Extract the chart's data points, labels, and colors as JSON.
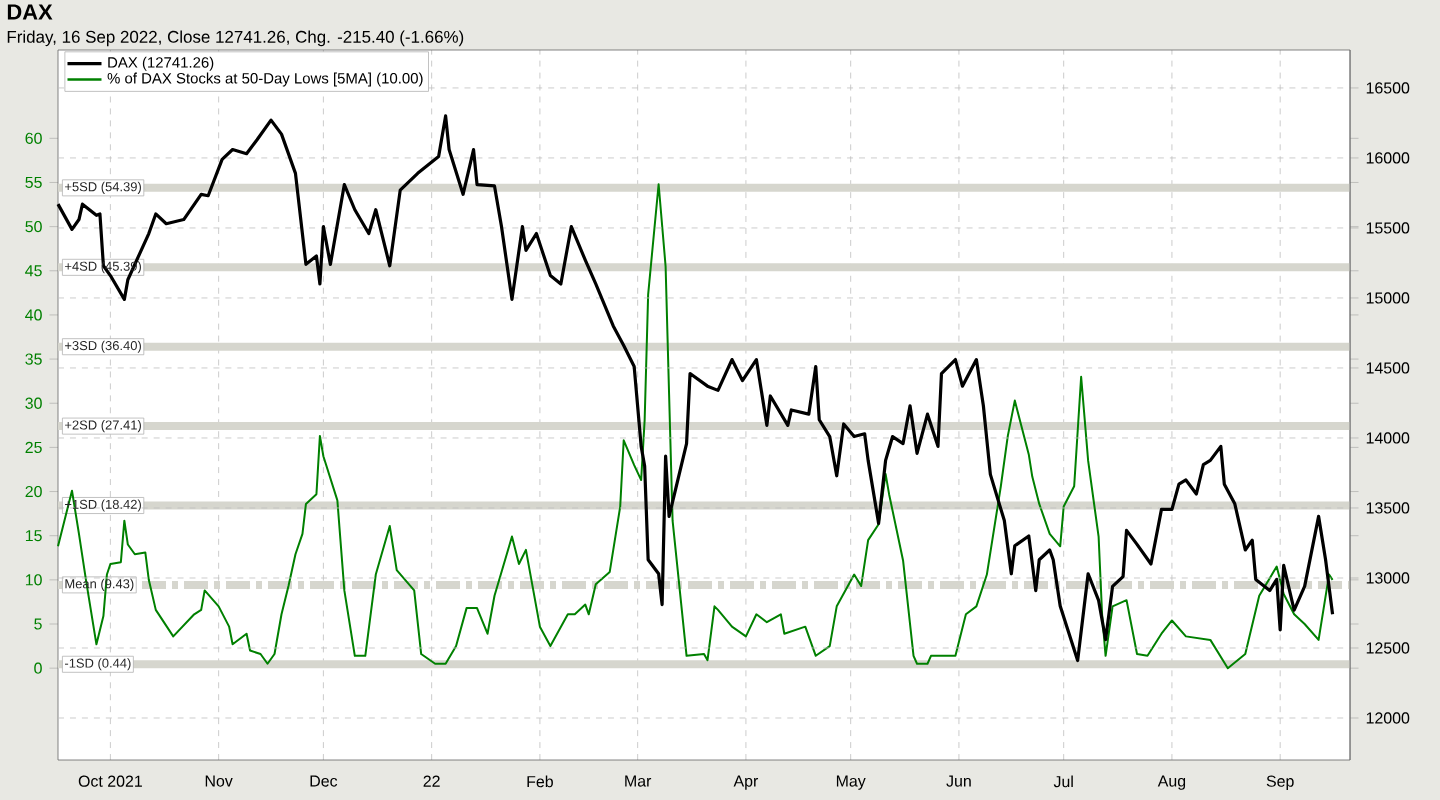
{
  "chart_data": {
    "type": "line",
    "title": "DAX",
    "subtitle": "Friday, 16 Sep 2022, Close 12741.26, Chg. -215.40 (-1.66%)",
    "xlim": [
      "2021-09-16",
      "2022-09-21"
    ],
    "xticks": [
      {
        "value": "2021-10-01",
        "label": "Oct 2021"
      },
      {
        "value": "2021-11-01",
        "label": "Nov"
      },
      {
        "value": "2021-12-01",
        "label": "Dec"
      },
      {
        "value": "2022-01-01",
        "label": "22"
      },
      {
        "value": "2022-02-01",
        "label": "Feb"
      },
      {
        "value": "2022-03-01",
        "label": "Mar"
      },
      {
        "value": "2022-04-01",
        "label": "Apr"
      },
      {
        "value": "2022-05-01",
        "label": "May"
      },
      {
        "value": "2022-06-01",
        "label": "Jun"
      },
      {
        "value": "2022-07-01",
        "label": "Jul"
      },
      {
        "value": "2022-08-01",
        "label": "Aug"
      },
      {
        "value": "2022-09-01",
        "label": "Sep"
      }
    ],
    "ylim": [
      -10.4,
      70
    ],
    "yticks": [
      0,
      5,
      10,
      15,
      20,
      25,
      30,
      35,
      40,
      45,
      50,
      55,
      60
    ],
    "y2lim": [
      11700,
      16771
    ],
    "y2ticks": [
      12000,
      12500,
      13000,
      13500,
      14000,
      14500,
      15000,
      15500,
      16000,
      16500
    ],
    "grid": true,
    "legend": "top left",
    "series": [
      {
        "name": "DAX (12741.26)",
        "color": "#000000",
        "axis": "y2",
        "x": [
          "2021-09-16",
          "2021-09-20",
          "2021-09-22",
          "2021-09-23",
          "2021-09-27",
          "2021-09-28",
          "2021-09-29",
          "2021-10-01",
          "2021-10-05",
          "2021-10-06",
          "2021-10-12",
          "2021-10-14",
          "2021-10-17",
          "2021-10-22",
          "2021-10-27",
          "2021-10-29",
          "2021-11-02",
          "2021-11-05",
          "2021-11-09",
          "2021-11-12",
          "2021-11-16",
          "2021-11-19",
          "2021-11-23",
          "2021-11-26",
          "2021-11-29",
          "2021-11-30",
          "2021-12-01",
          "2021-12-03",
          "2021-12-07",
          "2021-12-10",
          "2021-12-14",
          "2021-12-16",
          "2021-12-20",
          "2021-12-23",
          "2021-12-28",
          "2022-01-03",
          "2022-01-05",
          "2022-01-06",
          "2022-01-10",
          "2022-01-13",
          "2022-01-14",
          "2022-01-19",
          "2022-01-21",
          "2022-01-24",
          "2022-01-27",
          "2022-01-28",
          "2022-01-31",
          "2022-02-04",
          "2022-02-07",
          "2022-02-10",
          "2022-02-14",
          "2022-02-17",
          "2022-02-22",
          "2022-02-25",
          "2022-02-28",
          "2022-03-02",
          "2022-03-03",
          "2022-03-04",
          "2022-03-07",
          "2022-03-08",
          "2022-03-09",
          "2022-03-10",
          "2022-03-15",
          "2022-03-16",
          "2022-03-21",
          "2022-03-24",
          "2022-03-28",
          "2022-03-31",
          "2022-04-04",
          "2022-04-07",
          "2022-04-08",
          "2022-04-13",
          "2022-04-14",
          "2022-04-19",
          "2022-04-21",
          "2022-04-22",
          "2022-04-25",
          "2022-04-27",
          "2022-04-29",
          "2022-05-02",
          "2022-05-05",
          "2022-05-06",
          "2022-05-09",
          "2022-05-11",
          "2022-05-13",
          "2022-05-16",
          "2022-05-18",
          "2022-05-20",
          "2022-05-23",
          "2022-05-26",
          "2022-05-27",
          "2022-05-31",
          "2022-06-02",
          "2022-06-06",
          "2022-06-08",
          "2022-06-10",
          "2022-06-14",
          "2022-06-16",
          "2022-06-17",
          "2022-06-21",
          "2022-06-23",
          "2022-06-24",
          "2022-06-27",
          "2022-06-28",
          "2022-06-30",
          "2022-07-05",
          "2022-07-08",
          "2022-07-11",
          "2022-07-13",
          "2022-07-15",
          "2022-07-18",
          "2022-07-19",
          "2022-07-22",
          "2022-07-26",
          "2022-07-29",
          "2022-08-01",
          "2022-08-03",
          "2022-08-05",
          "2022-08-08",
          "2022-08-10",
          "2022-08-12",
          "2022-08-15",
          "2022-08-16",
          "2022-08-19",
          "2022-08-22",
          "2022-08-24",
          "2022-08-25",
          "2022-08-29",
          "2022-08-31",
          "2022-09-01",
          "2022-09-02",
          "2022-09-05",
          "2022-09-08",
          "2022-09-12",
          "2022-09-14",
          "2022-09-16"
        ],
        "values": [
          15670,
          15490,
          15560,
          15670,
          15590,
          15600,
          15230,
          15160,
          14990,
          15130,
          15460,
          15600,
          15530,
          15560,
          15740,
          15730,
          15990,
          16060,
          16030,
          16130,
          16270,
          16170,
          15890,
          15240,
          15300,
          15100,
          15510,
          15240,
          15810,
          15630,
          15460,
          15630,
          15230,
          15770,
          15890,
          16010,
          16300,
          16060,
          15740,
          16060,
          15810,
          15800,
          15510,
          14990,
          15510,
          15340,
          15460,
          15160,
          15100,
          15510,
          15270,
          15100,
          14800,
          14660,
          14510,
          13940,
          13800,
          13130,
          13030,
          12810,
          13870,
          13440,
          13960,
          14460,
          14370,
          14340,
          14560,
          14410,
          14560,
          14090,
          14300,
          14090,
          14200,
          14170,
          14510,
          14130,
          14010,
          13730,
          14100,
          14010,
          14030,
          13840,
          13390,
          13840,
          14010,
          13960,
          14230,
          13890,
          14170,
          13940,
          14460,
          14560,
          14370,
          14560,
          14230,
          13740,
          13410,
          13030,
          13230,
          13300,
          12910,
          13130,
          13200,
          13130,
          12800,
          12410,
          13030,
          12840,
          12560,
          12940,
          13010,
          13340,
          13240,
          13100,
          13490,
          13490,
          13670,
          13700,
          13600,
          13810,
          13840,
          13940,
          13670,
          13530,
          13200,
          13270,
          12990,
          12910,
          12990,
          12630,
          13090,
          12770,
          12940,
          13440,
          13130,
          12741
        ]
      },
      {
        "name": "% of DAX Stocks at 50-Day Lows [5MA] (10.00)",
        "color": "#008000",
        "x": [
          "2021-09-16",
          "2021-09-20",
          "2021-09-22",
          "2021-09-24",
          "2021-09-27",
          "2021-09-29",
          "2021-09-30",
          "2021-10-01",
          "2021-10-04",
          "2021-10-05",
          "2021-10-06",
          "2021-10-08",
          "2021-10-11",
          "2021-10-12",
          "2021-10-14",
          "2021-10-19",
          "2021-10-25",
          "2021-10-27",
          "2021-10-28",
          "2021-11-01",
          "2021-11-04",
          "2021-11-05",
          "2021-11-09",
          "2021-11-10",
          "2021-11-13",
          "2021-11-15",
          "2021-11-17",
          "2021-11-19",
          "2021-11-21",
          "2021-11-23",
          "2021-11-25",
          "2021-11-26",
          "2021-11-29",
          "2021-11-30",
          "2021-12-01",
          "2021-12-05",
          "2021-12-07",
          "2021-12-10",
          "2021-12-13",
          "2021-12-16",
          "2021-12-20",
          "2021-12-22",
          "2021-12-27",
          "2021-12-29",
          "2022-01-02",
          "2022-01-05",
          "2022-01-08",
          "2022-01-11",
          "2022-01-14",
          "2022-01-17",
          "2022-01-19",
          "2022-01-24",
          "2022-01-26",
          "2022-01-28",
          "2022-02-01",
          "2022-02-04",
          "2022-02-09",
          "2022-02-11",
          "2022-02-14",
          "2022-02-15",
          "2022-02-17",
          "2022-02-21",
          "2022-02-24",
          "2022-02-25",
          "2022-02-28",
          "2022-03-02",
          "2022-03-03",
          "2022-03-04",
          "2022-03-07",
          "2022-03-09",
          "2022-03-10",
          "2022-03-11",
          "2022-03-15",
          "2022-03-20",
          "2022-03-21",
          "2022-03-23",
          "2022-03-24",
          "2022-03-28",
          "2022-04-01",
          "2022-04-04",
          "2022-04-07",
          "2022-04-11",
          "2022-04-12",
          "2022-04-18",
          "2022-04-21",
          "2022-04-25",
          "2022-04-27",
          "2022-05-02",
          "2022-05-04",
          "2022-05-06",
          "2022-05-09",
          "2022-05-11",
          "2022-05-12",
          "2022-05-16",
          "2022-05-19",
          "2022-05-20",
          "2022-05-23",
          "2022-05-24",
          "2022-05-31",
          "2022-06-03",
          "2022-06-06",
          "2022-06-09",
          "2022-06-13",
          "2022-06-15",
          "2022-06-17",
          "2022-06-21",
          "2022-06-22",
          "2022-06-24",
          "2022-06-27",
          "2022-06-30",
          "2022-07-01",
          "2022-07-04",
          "2022-07-06",
          "2022-07-08",
          "2022-07-11",
          "2022-07-12",
          "2022-07-13",
          "2022-07-15",
          "2022-07-19",
          "2022-07-22",
          "2022-07-25",
          "2022-07-29",
          "2022-08-01",
          "2022-08-05",
          "2022-08-12",
          "2022-08-17",
          "2022-08-22",
          "2022-08-26",
          "2022-08-31",
          "2022-09-02",
          "2022-09-05",
          "2022-09-08",
          "2022-09-12",
          "2022-09-15",
          "2022-09-16"
        ],
        "values": [
          13.8,
          20.1,
          15.2,
          10,
          2.7,
          5.9,
          10.6,
          11.8,
          12,
          16.7,
          14,
          12.9,
          13.1,
          10,
          6.6,
          3.6,
          6.1,
          6.6,
          8.8,
          7,
          4.7,
          2.7,
          3.9,
          2,
          1.6,
          0.5,
          1.6,
          6.1,
          9.3,
          12.9,
          15.2,
          18.6,
          19.7,
          26.3,
          24,
          19,
          8.8,
          1.4,
          1.4,
          10.6,
          16.1,
          11.1,
          8.8,
          1.6,
          0.5,
          0.5,
          2.5,
          6.8,
          6.8,
          3.9,
          8.2,
          14.9,
          11.8,
          13.4,
          4.7,
          2.5,
          6.1,
          6.1,
          7.2,
          6.1,
          9.5,
          10.9,
          18.3,
          25.8,
          23,
          21.3,
          28.1,
          42.3,
          54.8,
          45.5,
          31,
          16.7,
          1.4,
          1.6,
          0.9,
          7,
          6.6,
          4.7,
          3.6,
          6.1,
          5.2,
          6.1,
          3.9,
          4.7,
          1.4,
          2.5,
          7,
          10.6,
          9.3,
          14.5,
          16.3,
          22,
          19.7,
          12.2,
          1.4,
          0.5,
          0.5,
          1.4,
          1.4,
          6.1,
          7,
          10.6,
          20.6,
          26.3,
          30.3,
          24.2,
          21.7,
          18.6,
          15.2,
          13.8,
          18.3,
          20.6,
          33,
          23.5,
          14.9,
          6.1,
          1.4,
          7,
          7.7,
          1.6,
          1.4,
          3.9,
          5.4,
          3.6,
          3.2,
          0,
          1.6,
          8.2,
          11.5,
          8.4,
          6.1,
          5,
          3.2,
          10.6,
          10
        ]
      }
    ],
    "ref_lines": [
      {
        "axis": "y",
        "value": 54.39,
        "label": "+5SD (54.39)",
        "color": "#d6d6ce"
      },
      {
        "axis": "y",
        "value": 45.39,
        "label": "+4SD (45.39)",
        "color": "#d6d6ce"
      },
      {
        "axis": "y",
        "value": 36.4,
        "label": "+3SD (36.40)",
        "color": "#d6d6ce"
      },
      {
        "axis": "y",
        "value": 27.41,
        "label": "+2SD (27.41)",
        "color": "#d6d6ce"
      },
      {
        "axis": "y",
        "value": 18.42,
        "label": "+1SD (18.42)",
        "color": "#d6d6ce"
      },
      {
        "axis": "y",
        "value": 9.43,
        "label": "Mean (9.43)",
        "color": "#d6d6ce",
        "line_style": "dashed"
      },
      {
        "axis": "y",
        "value": 0.44,
        "label": "-1SD (0.44)",
        "color": "#d6d6ce"
      }
    ]
  }
}
